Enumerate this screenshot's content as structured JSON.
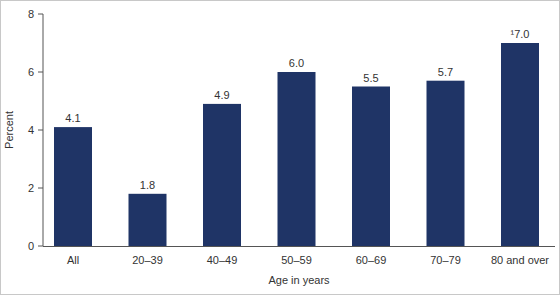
{
  "chart_data": {
    "type": "bar",
    "categories": [
      "All",
      "20–39",
      "40–49",
      "50–59",
      "60–69",
      "70–79",
      "80 and over"
    ],
    "values": [
      4.1,
      1.8,
      4.9,
      6.0,
      5.5,
      5.7,
      7.0
    ],
    "value_labels": [
      "4.1",
      "1.8",
      "4.9",
      "6.0",
      "5.5",
      "5.7",
      "¹7.0"
    ],
    "data_labels": true,
    "color": "#1f3466",
    "x_label": "Age in years",
    "y_label": "Percent",
    "ylim": [
      0,
      8
    ],
    "yticks": [
      0,
      2,
      4,
      6,
      8
    ],
    "grid": false
  }
}
